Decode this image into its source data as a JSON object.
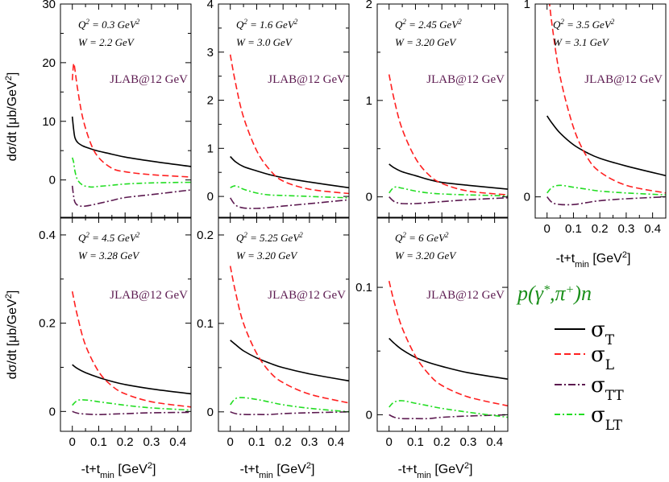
{
  "figure": {
    "experiment_label": "JLAB@12 GeV",
    "reaction": {
      "pre": "p(γ",
      "sup1": "*",
      "mid": ",π",
      "sup2": "+",
      "post": ")n"
    },
    "ylabel": {
      "pre": "dσ/dt [μb/GeV",
      "sup": "2",
      "post": "]"
    },
    "xlabel": {
      "pre": "-t+t",
      "sub": "min",
      "post": " [GeV",
      "sup": "2",
      "post2": "]"
    }
  },
  "chart_data": {
    "type": "line",
    "xlim": [
      -0.045,
      0.45
    ],
    "xticks": [
      0,
      0.1,
      0.2,
      0.3,
      0.4
    ],
    "xtick_labels": [
      "0",
      "0.1",
      "0.2",
      "0.3",
      "0.4"
    ],
    "series_styles": [
      {
        "key": "T",
        "legend": "σ",
        "sub": "T",
        "color": "#000000",
        "dash": ""
      },
      {
        "key": "L",
        "legend": "σ",
        "sub": "L",
        "color": "#ff2020",
        "dash": "8,4"
      },
      {
        "key": "TT",
        "legend": "σ",
        "sub": "TT",
        "color": "#5c1a50",
        "dash": "9,3,2,3"
      },
      {
        "key": "LT",
        "legend": "σ",
        "sub": "LT",
        "color": "#22dd22",
        "dash": "7,3,2,3"
      }
    ],
    "panels": [
      {
        "row": 0,
        "col": 0,
        "q2_label": "0.3 GeV",
        "w_label": "2.2 GeV",
        "ylim": [
          -6.5,
          30
        ],
        "yticks": [
          0,
          10,
          20,
          30
        ],
        "ytick_labels": [
          "0",
          "10",
          "20",
          "30"
        ],
        "show_exp": true,
        "x": [
          0,
          0.005,
          0.01,
          0.02,
          0.04,
          0.07,
          0.1,
          0.15,
          0.2,
          0.3,
          0.45
        ],
        "series": {
          "T": [
            10.8,
            8.6,
            7.2,
            6.4,
            5.8,
            5.3,
            4.9,
            4.4,
            3.9,
            3.2,
            2.3
          ],
          "L": [
            17.0,
            19.8,
            18.8,
            15.5,
            10.5,
            6.2,
            3.8,
            2.0,
            1.4,
            0.9,
            0.5
          ],
          "TT": [
            -1.0,
            -2.8,
            -3.8,
            -4.3,
            -4.5,
            -4.3,
            -4.0,
            -3.5,
            -3.0,
            -2.5,
            -1.7
          ],
          "LT": [
            3.8,
            3.0,
            1.5,
            0.0,
            -0.9,
            -1.2,
            -1.1,
            -0.9,
            -0.7,
            -0.5,
            -0.4
          ]
        }
      },
      {
        "row": 0,
        "col": 1,
        "q2_label": "1.6 GeV",
        "w_label": "3.0 GeV",
        "ylim": [
          -0.45,
          4
        ],
        "yticks": [
          0,
          1,
          2,
          3,
          4
        ],
        "ytick_labels": [
          "0",
          "1",
          "2",
          "3",
          "4"
        ],
        "show_exp": true,
        "x": [
          0,
          0.02,
          0.05,
          0.1,
          0.15,
          0.2,
          0.3,
          0.45
        ],
        "series": {
          "T": [
            0.83,
            0.72,
            0.62,
            0.53,
            0.45,
            0.39,
            0.3,
            0.18
          ],
          "L": [
            2.95,
            2.35,
            1.65,
            0.95,
            0.55,
            0.32,
            0.15,
            0.06
          ],
          "TT": [
            -0.03,
            -0.18,
            -0.24,
            -0.25,
            -0.23,
            -0.2,
            -0.15,
            -0.07
          ],
          "LT": [
            0.18,
            0.22,
            0.15,
            0.07,
            0.03,
            0.02,
            0.0,
            -0.03
          ]
        }
      },
      {
        "row": 0,
        "col": 2,
        "q2_label": "2.45 GeV",
        "w_label": "3.20 GeV",
        "ylim": [
          -0.22,
          2
        ],
        "yticks": [
          0,
          1,
          2
        ],
        "ytick_labels": [
          "0",
          "1",
          "2"
        ],
        "show_exp": true,
        "x": [
          0,
          0.02,
          0.05,
          0.1,
          0.15,
          0.2,
          0.3,
          0.45
        ],
        "series": {
          "T": [
            0.34,
            0.3,
            0.26,
            0.22,
            0.18,
            0.15,
            0.12,
            0.08
          ],
          "L": [
            1.27,
            1.0,
            0.7,
            0.4,
            0.23,
            0.14,
            0.06,
            0.02
          ],
          "TT": [
            0.0,
            -0.05,
            -0.07,
            -0.07,
            -0.06,
            -0.05,
            -0.03,
            -0.01
          ],
          "LT": [
            0.04,
            0.1,
            0.09,
            0.06,
            0.04,
            0.03,
            0.02,
            0.01
          ]
        }
      },
      {
        "row": 0,
        "col": 3,
        "q2_label": "3.5 GeV",
        "w_label": "3.1 GeV",
        "ylim": [
          -0.11,
          1
        ],
        "yticks": [
          0,
          1
        ],
        "ytick_labels": [
          "0",
          "1"
        ],
        "show_exp": true,
        "x": [
          0,
          0.02,
          0.05,
          0.1,
          0.15,
          0.2,
          0.3,
          0.45
        ],
        "series": {
          "T": [
            0.42,
            0.38,
            0.33,
            0.27,
            0.23,
            0.2,
            0.16,
            0.11
          ],
          "L": [
            1.12,
            0.88,
            0.62,
            0.36,
            0.21,
            0.13,
            0.06,
            0.02
          ],
          "TT": [
            0.0,
            -0.03,
            -0.04,
            -0.04,
            -0.03,
            -0.02,
            -0.01,
            0.0
          ],
          "LT": [
            0.02,
            0.05,
            0.06,
            0.05,
            0.04,
            0.03,
            0.02,
            0.01
          ]
        }
      },
      {
        "row": 1,
        "col": 0,
        "q2_label": "4.5 GeV",
        "w_label": "3.28 GeV",
        "ylim": [
          -0.045,
          0.44
        ],
        "yticks": [
          0,
          0.2,
          0.4
        ],
        "ytick_labels": [
          "0",
          "0.2",
          "0.4"
        ],
        "show_exp": true,
        "x": [
          0,
          0.02,
          0.05,
          0.1,
          0.15,
          0.2,
          0.3,
          0.45
        ],
        "series": {
          "T": [
            0.106,
            0.097,
            0.088,
            0.077,
            0.068,
            0.061,
            0.051,
            0.04
          ],
          "L": [
            0.272,
            0.215,
            0.15,
            0.09,
            0.058,
            0.04,
            0.022,
            0.01
          ],
          "TT": [
            0.0,
            -0.004,
            -0.006,
            -0.007,
            -0.006,
            -0.005,
            -0.003,
            -0.002
          ],
          "LT": [
            0.014,
            0.025,
            0.026,
            0.022,
            0.018,
            0.014,
            0.008,
            0.003
          ]
        }
      },
      {
        "row": 1,
        "col": 1,
        "q2_label": "5.25 GeV",
        "w_label": "3.20 GeV",
        "ylim": [
          -0.022,
          0.22
        ],
        "yticks": [
          0,
          0.1,
          0.2
        ],
        "ytick_labels": [
          "0",
          "0.1",
          "0.2"
        ],
        "show_exp": true,
        "x": [
          0,
          0.02,
          0.05,
          0.1,
          0.15,
          0.2,
          0.3,
          0.45
        ],
        "series": {
          "T": [
            0.081,
            0.076,
            0.069,
            0.061,
            0.055,
            0.05,
            0.043,
            0.035
          ],
          "L": [
            0.165,
            0.135,
            0.1,
            0.066,
            0.045,
            0.033,
            0.02,
            0.01
          ],
          "TT": [
            0.0,
            -0.002,
            -0.003,
            -0.003,
            -0.003,
            -0.002,
            -0.001,
            0.0
          ],
          "LT": [
            0.008,
            0.015,
            0.016,
            0.014,
            0.011,
            0.008,
            0.004,
            0.0
          ]
        }
      },
      {
        "row": 1,
        "col": 2,
        "q2_label": "6 GeV",
        "w_label": "3.20 GeV",
        "ylim": [
          -0.013,
          0.155
        ],
        "yticks": [
          0,
          0.1
        ],
        "ytick_labels": [
          "0",
          "0.1"
        ],
        "show_exp": true,
        "x": [
          0,
          0.02,
          0.05,
          0.1,
          0.15,
          0.2,
          0.3,
          0.45
        ],
        "series": {
          "T": [
            0.06,
            0.056,
            0.051,
            0.045,
            0.041,
            0.038,
            0.033,
            0.028
          ],
          "L": [
            0.105,
            0.088,
            0.068,
            0.046,
            0.032,
            0.023,
            0.014,
            0.007
          ],
          "TT": [
            0.0,
            -0.002,
            -0.003,
            -0.003,
            -0.003,
            -0.002,
            -0.001,
            0.0
          ],
          "LT": [
            0.006,
            0.01,
            0.011,
            0.009,
            0.007,
            0.005,
            0.002,
            -0.002
          ]
        }
      }
    ]
  }
}
